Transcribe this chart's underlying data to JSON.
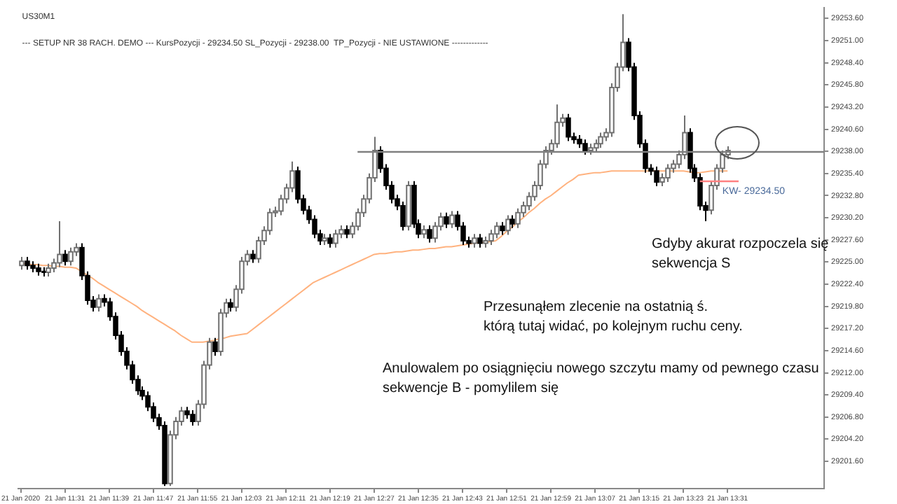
{
  "chart_data": {
    "type": "candlestick",
    "title": "US30M1",
    "subtitle": "--- SETUP NR 38 RACH. DEMO --- KursPozycji - 29234.50 SL_Pozycji - 29238.00  TP_Pozycji - NIE USTAWIONE -------------",
    "categories": [
      "21 Jan 2020",
      null,
      null,
      null,
      null,
      null,
      null,
      null,
      "21 Jan 11:31",
      null,
      null,
      null,
      null,
      null,
      null,
      null,
      "21 Jan 11:39",
      null,
      null,
      null,
      null,
      null,
      null,
      null,
      "21 Jan 11:47",
      null,
      null,
      null,
      null,
      null,
      null,
      null,
      "21 Jan 11:55",
      null,
      null,
      null,
      null,
      null,
      null,
      null,
      "21 Jan 12:03",
      null,
      null,
      null,
      null,
      null,
      null,
      null,
      "21 Jan 12:11",
      null,
      null,
      null,
      null,
      null,
      null,
      null,
      "21 Jan 12:19",
      null,
      null,
      null,
      null,
      null,
      null,
      null,
      "21 Jan 12:27",
      null,
      null,
      null,
      null,
      null,
      null,
      null,
      "21 Jan 12:35",
      null,
      null,
      null,
      null,
      null,
      null,
      null,
      "21 Jan 12:43",
      null,
      null,
      null,
      null,
      null,
      null,
      null,
      "21 Jan 12:51",
      null,
      null,
      null,
      null,
      null,
      null,
      null,
      "21 Jan 12:59",
      null,
      null,
      null,
      null,
      null,
      null,
      null,
      "21 Jan 13:07",
      null,
      null,
      null,
      null,
      null,
      null,
      null,
      "21 Jan 13:15",
      null,
      null,
      null,
      null,
      null,
      null,
      null,
      "21 Jan 13:23",
      null,
      null,
      null,
      null,
      null,
      null,
      null,
      "21 Jan 13:31",
      null,
      null,
      null,
      null,
      null,
      null,
      null,
      null,
      null,
      null,
      null,
      null,
      null,
      null,
      null,
      null,
      null
    ],
    "ohlc": [
      [
        29224.6,
        29225.6,
        29224.1,
        29225.1
      ],
      [
        29225.1,
        29225.6,
        29224.1,
        29224.6
      ],
      [
        29224.6,
        29225.1,
        29223.8,
        29224.3
      ],
      [
        29224.3,
        29224.8,
        29223.4,
        29223.9
      ],
      [
        29223.9,
        29224.4,
        29223.3,
        29223.8
      ],
      [
        29223.8,
        29224.8,
        29223.3,
        29224.3
      ],
      [
        29224.3,
        29225.4,
        29223.8,
        29224.9
      ],
      [
        29224.9,
        29229.8,
        29224.4,
        29225.9
      ],
      [
        29225.9,
        29226.4,
        29224.6,
        29225.1
      ],
      [
        29225.1,
        29226.7,
        29224.6,
        29226.2
      ],
      [
        29226.2,
        29227.2,
        29225.7,
        29226.7
      ],
      [
        29226.7,
        29227.2,
        29222.9,
        29223.4
      ],
      [
        29223.4,
        29223.9,
        29220.0,
        29220.5
      ],
      [
        29220.5,
        29221.0,
        29219.2,
        29219.7
      ],
      [
        29219.7,
        29221.2,
        29219.2,
        29220.7
      ],
      [
        29220.7,
        29221.2,
        29219.8,
        29220.3
      ],
      [
        29220.3,
        29220.8,
        29218.1,
        29218.6
      ],
      [
        29218.6,
        29219.1,
        29215.9,
        29216.4
      ],
      [
        29216.4,
        29216.9,
        29214.0,
        29214.5
      ],
      [
        29214.5,
        29215.0,
        29212.4,
        29212.9
      ],
      [
        29212.9,
        29213.4,
        29210.7,
        29211.2
      ],
      [
        29211.2,
        29211.7,
        29209.4,
        29209.9
      ],
      [
        29209.9,
        29210.4,
        29208.8,
        29209.3
      ],
      [
        29209.3,
        29209.8,
        29207.5,
        29208.0
      ],
      [
        29208.0,
        29208.5,
        29206.2,
        29206.7
      ],
      [
        29206.7,
        29207.2,
        29205.3,
        29205.8
      ],
      [
        29205.8,
        29206.3,
        29198.7,
        29199.0
      ],
      [
        29199.0,
        29205.2,
        29198.7,
        29204.7
      ],
      [
        29204.7,
        29206.8,
        29204.2,
        29206.3
      ],
      [
        29206.3,
        29208.0,
        29205.8,
        29207.5
      ],
      [
        29207.5,
        29208.0,
        29206.6,
        29207.1
      ],
      [
        29207.1,
        29207.6,
        29205.8,
        29206.3
      ],
      [
        29206.3,
        29208.8,
        29205.8,
        29208.3
      ],
      [
        29208.3,
        29213.4,
        29207.8,
        29212.9
      ],
      [
        29212.9,
        29216.1,
        29212.4,
        29215.6
      ],
      [
        29215.6,
        29216.1,
        29214.0,
        29214.5
      ],
      [
        29214.5,
        29219.5,
        29214.0,
        29219.0
      ],
      [
        29219.0,
        29220.7,
        29218.5,
        29220.2
      ],
      [
        29220.2,
        29220.7,
        29219.2,
        29219.7
      ],
      [
        29219.7,
        29222.3,
        29219.2,
        29221.8
      ],
      [
        29221.8,
        29225.6,
        29221.3,
        29225.1
      ],
      [
        29225.1,
        29226.4,
        29224.6,
        29225.9
      ],
      [
        29225.9,
        29226.4,
        29224.9,
        29225.4
      ],
      [
        29225.4,
        29228.0,
        29224.9,
        29227.5
      ],
      [
        29227.5,
        29229.2,
        29227.0,
        29228.7
      ],
      [
        29228.7,
        29231.3,
        29228.2,
        29230.8
      ],
      [
        29230.8,
        29231.5,
        29230.3,
        29231.0
      ],
      [
        29231.0,
        29232.9,
        29230.5,
        29232.4
      ],
      [
        29232.4,
        29234.2,
        29231.9,
        29233.7
      ],
      [
        29233.7,
        29236.8,
        29233.2,
        29235.7
      ],
      [
        29235.7,
        29236.2,
        29231.9,
        29232.4
      ],
      [
        29232.4,
        29232.9,
        29230.6,
        29231.1
      ],
      [
        29231.1,
        29231.6,
        29229.5,
        29230.0
      ],
      [
        29230.0,
        29230.5,
        29227.8,
        29228.3
      ],
      [
        29228.3,
        29228.8,
        29227.0,
        29227.5
      ],
      [
        29227.5,
        29228.3,
        29227.0,
        29227.8
      ],
      [
        29227.8,
        29228.3,
        29226.7,
        29227.2
      ],
      [
        29227.2,
        29228.8,
        29226.7,
        29228.3
      ],
      [
        29228.3,
        29229.3,
        29227.8,
        29228.8
      ],
      [
        29228.8,
        29229.3,
        29227.8,
        29228.3
      ],
      [
        29228.3,
        29229.7,
        29227.8,
        29229.2
      ],
      [
        29229.2,
        29231.3,
        29228.7,
        29230.8
      ],
      [
        29230.8,
        29232.9,
        29230.3,
        29232.4
      ],
      [
        29232.4,
        29235.4,
        29231.9,
        29234.9
      ],
      [
        29234.9,
        29239.7,
        29234.4,
        29238.1
      ],
      [
        29238.1,
        29238.6,
        29235.5,
        29236.0
      ],
      [
        29236.0,
        29236.5,
        29233.5,
        29234.0
      ],
      [
        29234.0,
        29234.5,
        29231.9,
        29232.4
      ],
      [
        29232.4,
        29232.9,
        29231.1,
        29231.6
      ],
      [
        29231.6,
        29232.1,
        29228.7,
        29229.2
      ],
      [
        29229.2,
        29234.5,
        29228.7,
        29234.0
      ],
      [
        29234.0,
        29234.5,
        29229.0,
        29229.5
      ],
      [
        29229.5,
        29230.0,
        29227.8,
        29228.3
      ],
      [
        29228.3,
        29229.3,
        29227.8,
        29228.8
      ],
      [
        29228.8,
        29229.3,
        29227.3,
        29227.8
      ],
      [
        29227.8,
        29229.7,
        29227.3,
        29229.2
      ],
      [
        29229.2,
        29230.8,
        29228.7,
        29230.3
      ],
      [
        29230.3,
        29230.8,
        29229.0,
        29229.5
      ],
      [
        29229.5,
        29231.0,
        29229.0,
        29230.5
      ],
      [
        29230.5,
        29231.0,
        29228.7,
        29229.2
      ],
      [
        29229.2,
        29229.7,
        29227.0,
        29227.5
      ],
      [
        29227.5,
        29228.0,
        29226.7,
        29227.2
      ],
      [
        29227.2,
        29228.3,
        29226.7,
        29227.8
      ],
      [
        29227.8,
        29228.3,
        29226.7,
        29227.2
      ],
      [
        29227.2,
        29228.0,
        29226.7,
        29227.5
      ],
      [
        29227.5,
        29228.8,
        29227.0,
        29228.3
      ],
      [
        29228.3,
        29229.7,
        29227.8,
        29229.2
      ],
      [
        29229.2,
        29229.7,
        29228.2,
        29228.7
      ],
      [
        29228.7,
        29230.5,
        29228.2,
        29230.0
      ],
      [
        29230.0,
        29230.5,
        29229.0,
        29229.5
      ],
      [
        29229.5,
        29231.3,
        29229.0,
        29230.8
      ],
      [
        29230.8,
        29232.1,
        29230.3,
        29231.6
      ],
      [
        29231.6,
        29233.2,
        29231.1,
        29232.7
      ],
      [
        29232.7,
        29234.5,
        29232.2,
        29234.0
      ],
      [
        29234.0,
        29237.0,
        29233.5,
        29236.5
      ],
      [
        29236.5,
        29238.6,
        29236.0,
        29238.1
      ],
      [
        29238.1,
        29239.4,
        29237.6,
        29238.9
      ],
      [
        29238.9,
        29243.5,
        29238.4,
        29241.4
      ],
      [
        29241.4,
        29242.4,
        29240.9,
        29241.9
      ],
      [
        29241.9,
        29242.4,
        29239.2,
        29239.7
      ],
      [
        29239.7,
        29240.2,
        29238.9,
        29239.4
      ],
      [
        29239.4,
        29239.9,
        29238.4,
        29238.9
      ],
      [
        29238.9,
        29239.4,
        29237.6,
        29238.1
      ],
      [
        29238.1,
        29238.9,
        29237.6,
        29238.4
      ],
      [
        29238.4,
        29239.4,
        29237.9,
        29238.9
      ],
      [
        29238.9,
        29240.2,
        29238.4,
        29239.7
      ],
      [
        29239.7,
        29240.7,
        29239.2,
        29240.2
      ],
      [
        29240.2,
        29246.0,
        29239.7,
        29245.5
      ],
      [
        29245.5,
        29248.4,
        29245.0,
        29247.9
      ],
      [
        29247.9,
        29254.1,
        29247.4,
        29250.8
      ],
      [
        29250.8,
        29251.3,
        29247.4,
        29247.9
      ],
      [
        29247.9,
        29248.4,
        29241.7,
        29242.2
      ],
      [
        29242.2,
        29242.7,
        29238.4,
        29238.9
      ],
      [
        29238.9,
        29239.4,
        29235.5,
        29236.0
      ],
      [
        29236.0,
        29236.5,
        29235.2,
        29235.7
      ],
      [
        29235.7,
        29236.2,
        29233.9,
        29234.4
      ],
      [
        29234.4,
        29235.4,
        29233.9,
        29234.9
      ],
      [
        29234.9,
        29236.5,
        29234.4,
        29236.0
      ],
      [
        29236.0,
        29237.0,
        29235.5,
        29236.5
      ],
      [
        29236.5,
        29238.1,
        29236.0,
        29237.6
      ],
      [
        29237.6,
        29242.2,
        29237.1,
        29240.2
      ],
      [
        29240.2,
        29240.7,
        29235.5,
        29236.0
      ],
      [
        29236.0,
        29236.5,
        29234.4,
        29234.9
      ],
      [
        29234.9,
        29235.4,
        29231.1,
        29231.6
      ],
      [
        29231.6,
        29232.1,
        29229.8,
        29231.1
      ],
      [
        29231.1,
        29234.5,
        29230.6,
        29234.0
      ],
      [
        29234.0,
        29236.5,
        29233.5,
        29236.0
      ],
      [
        29236.0,
        29238.1,
        29235.5,
        29237.6
      ],
      [
        29237.6,
        29238.6,
        29237.1,
        29238.1
      ],
      null,
      null,
      null,
      null,
      null,
      null,
      null,
      null,
      null,
      null,
      null,
      null,
      null,
      null,
      null,
      null,
      null
    ],
    "series": [
      {
        "type": "line",
        "color": "#ffb27f",
        "values": [
          29224.8,
          29224.8,
          29224.7,
          29224.7,
          29224.6,
          29224.6,
          29224.5,
          29224.5,
          29224.4,
          29224.4,
          29224.3,
          29223.9,
          29223.5,
          29223.1,
          29222.6,
          29222.2,
          29221.8,
          29221.4,
          29221.0,
          29220.6,
          29220.2,
          29219.8,
          29219.3,
          29218.9,
          29218.5,
          29218.1,
          29217.7,
          29217.3,
          29216.9,
          29216.4,
          29216.0,
          29215.6,
          29215.6,
          29215.6,
          29215.7,
          29215.8,
          29216.0,
          29216.1,
          29216.3,
          29216.4,
          29216.5,
          29216.6,
          29217.1,
          29217.6,
          29218.1,
          29218.6,
          29219.1,
          29219.6,
          29220.1,
          29220.6,
          29221.1,
          29221.6,
          29222.1,
          29222.6,
          29222.9,
          29223.2,
          29223.5,
          29223.8,
          29224.1,
          29224.4,
          29224.7,
          29225.0,
          29225.3,
          29225.6,
          29225.9,
          29226.0,
          29226.0,
          29226.1,
          29226.2,
          29226.2,
          29226.3,
          29226.4,
          29226.4,
          29226.5,
          29226.6,
          29226.6,
          29226.7,
          29226.8,
          29226.8,
          29226.9,
          29227.0,
          29227.1,
          29227.2,
          29227.3,
          29227.3,
          29227.4,
          29227.5,
          29228.0,
          29228.6,
          29229.1,
          29229.7,
          29230.2,
          29230.8,
          29231.3,
          29231.9,
          29232.4,
          29232.8,
          29233.3,
          29233.8,
          29234.3,
          29234.7,
          29235.2,
          29235.3,
          29235.4,
          29235.5,
          29235.5,
          29235.6,
          29235.7,
          29235.7,
          29235.7,
          29235.7,
          29235.7,
          29235.7,
          29235.7,
          29235.7,
          29235.7,
          29235.7,
          29235.7,
          29235.7,
          29235.7,
          29235.7,
          29235.6,
          29235.5,
          29235.5,
          29235.6,
          29235.7,
          29235.7,
          29235.7,
          29235.7,
          null,
          null,
          null,
          null,
          null,
          null,
          null,
          null,
          null,
          null,
          null,
          null,
          null,
          null,
          null,
          null,
          null
        ]
      }
    ],
    "ylim": [
      29198.4,
      29254.9
    ],
    "yticks": [
      {
        "value": 29201.6,
        "label": "29201.60"
      },
      {
        "value": 29204.2,
        "label": "29204.20"
      },
      {
        "value": 29206.8,
        "label": "29206.80"
      },
      {
        "value": 29209.4,
        "label": "29209.40"
      },
      {
        "value": 29212.0,
        "label": "29212.00"
      },
      {
        "value": 29214.6,
        "label": "29214.60"
      },
      {
        "value": 29217.2,
        "label": "29217.20"
      },
      {
        "value": 29219.8,
        "label": "29219.80"
      },
      {
        "value": 29222.4,
        "label": "29222.40"
      },
      {
        "value": 29225.0,
        "label": "29225.00"
      },
      {
        "value": 29227.6,
        "label": "29227.60"
      },
      {
        "value": 29230.2,
        "label": "29230.20"
      },
      {
        "value": 29232.8,
        "label": "29232.80"
      },
      {
        "value": 29235.4,
        "label": "29235.40"
      },
      {
        "value": 29238.0,
        "label": "29238.00"
      },
      {
        "value": 29240.6,
        "label": "29240.60"
      },
      {
        "value": 29243.2,
        "label": "29243.20"
      },
      {
        "value": 29245.8,
        "label": "29245.80"
      },
      {
        "value": 29248.4,
        "label": "29248.40"
      },
      {
        "value": 29251.0,
        "label": "29251.00"
      },
      {
        "value": 29253.6,
        "label": "29253.60"
      }
    ],
    "grid": false,
    "legend": false,
    "ref_lines": [
      {
        "axis": "y",
        "value": 29238.0,
        "color": "#808080"
      },
      {
        "axis": "y",
        "value": 29234.5,
        "label": "KW- 29234.50",
        "color": "#ff8080"
      }
    ],
    "annotations": [
      "Gdyby akurat rozpoczela się\nsekwencja S",
      "Przesunąłem zlecenie na ostatnią ś.\nktórą tutaj widać, po kolejnym ruchu ceny.",
      "Anulowalem po osiągnięciu nowego szczytu mamy od pewnego czasu\nsekwencje B - pomylilem się"
    ]
  }
}
